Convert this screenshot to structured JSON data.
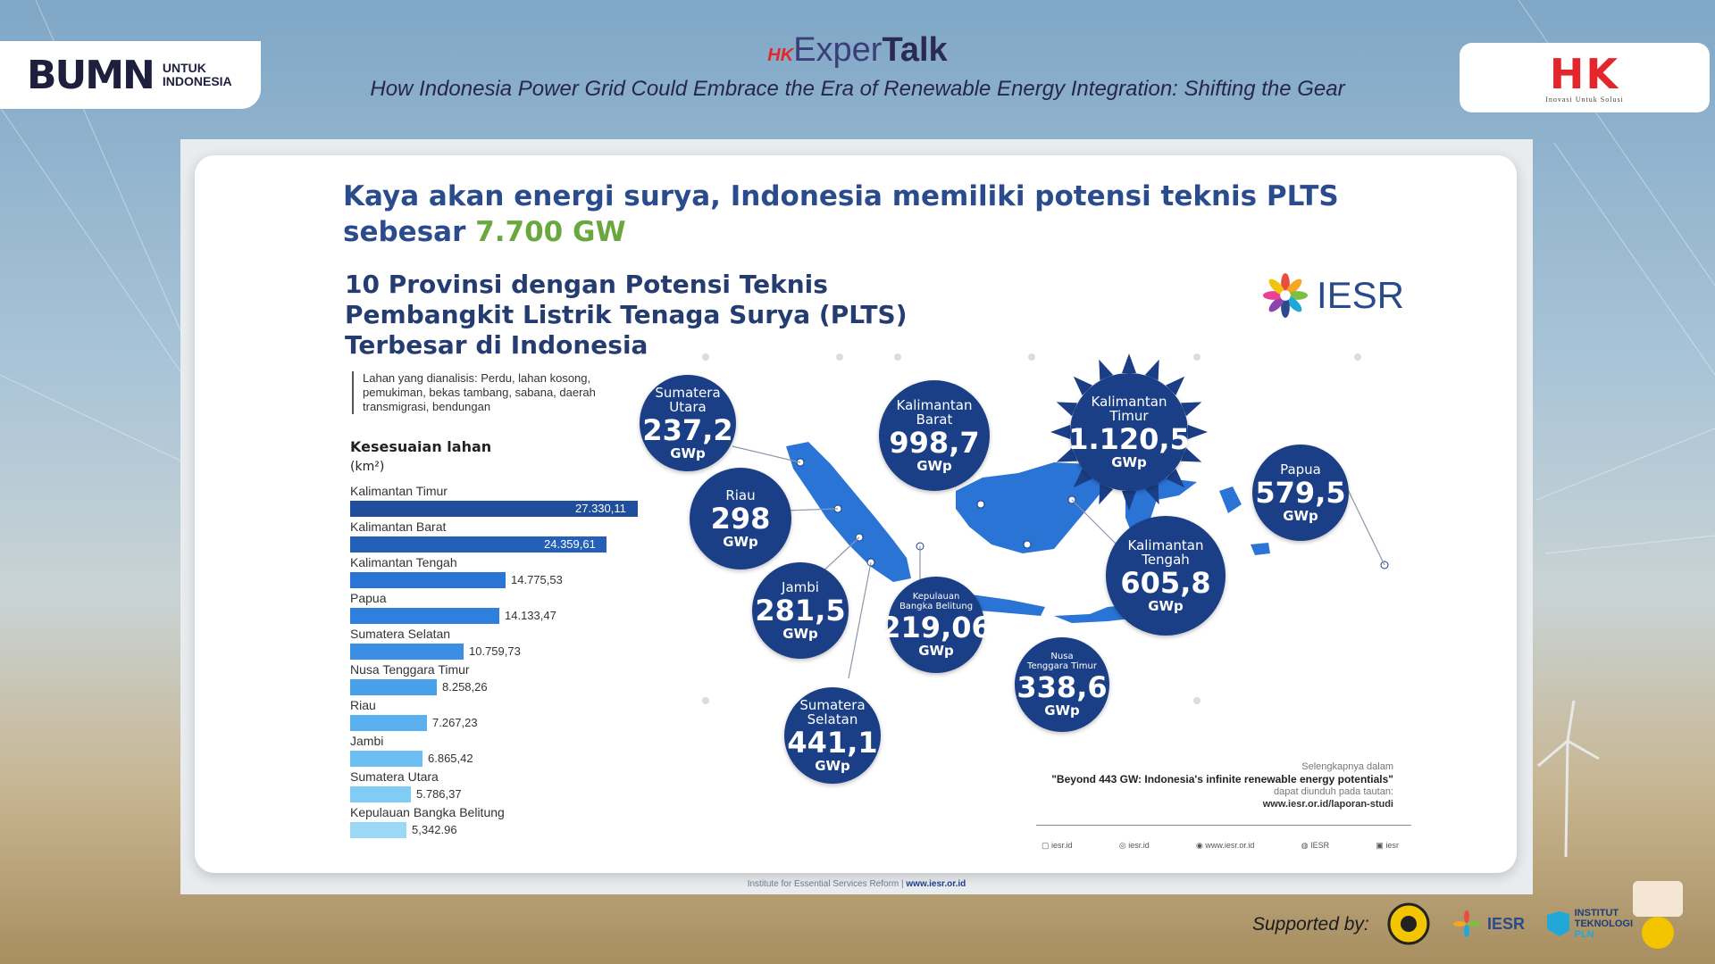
{
  "header": {
    "left_logo_mark": "BUMN",
    "left_logo_sub": "UNTUK INDONESIA",
    "center_brand_prefix": "HK",
    "center_brand_exper": "Exper",
    "center_brand_talk": "Talk",
    "subtitle": "How Indonesia Power Grid Could Embrace the Era of Renewable Energy Integration: Shifting the Gear",
    "right_logo_mark": "HK",
    "right_logo_tag": "Inovasi Untuk Solusi"
  },
  "slide": {
    "title_line1": "Kaya akan energi surya, Indonesia memiliki potensi teknis PLTS",
    "title_line2_prefix": "sebesar ",
    "title_highlight": "7.700 GW",
    "sub_line1": "10 Provinsi dengan Potensi Teknis",
    "sub_line2": "Pembangkit Listrik Tenaga Surya (PLTS)",
    "sub_line3": "Terbesar di Indonesia",
    "iesr_logo_text": "IESR",
    "note": "Lahan yang dianalisis: Perdu, lahan kosong, pemukiman, bekas tambang, sabana, daerah transmigrasi, bendungan",
    "bar_heading": "Kesesuaian lahan",
    "bar_unit": "(km²)",
    "bars": [
      {
        "label": "Kalimantan Timur",
        "value_text": "27.330,11",
        "value": 27330.11
      },
      {
        "label": "Kalimantan Barat",
        "value_text": "24.359,61",
        "value": 24359.61
      },
      {
        "label": "Kalimantan Tengah",
        "value_text": "14.775,53",
        "value": 14775.53
      },
      {
        "label": "Papua",
        "value_text": "14.133,47",
        "value": 14133.47
      },
      {
        "label": "Sumatera Selatan",
        "value_text": "10.759,73",
        "value": 10759.73
      },
      {
        "label": "Nusa Tenggara Timur",
        "value_text": "8.258,26",
        "value": 8258.26
      },
      {
        "label": "Riau",
        "value_text": "7.267,23",
        "value": 7267.23
      },
      {
        "label": "Jambi",
        "value_text": "6.865,42",
        "value": 6865.42
      },
      {
        "label": "Sumatera Utara",
        "value_text": "5.786,37",
        "value": 5786.37
      },
      {
        "label": "Kepulauan Bangka Belitung",
        "value_text": "5,342.96",
        "value": 5342.96
      }
    ],
    "bubbles": {
      "sumut": {
        "name1": "Sumatera",
        "name2": "Utara",
        "value": "237,2",
        "unit": "GWp"
      },
      "riau": {
        "name1": "Riau",
        "value": "298",
        "unit": "GWp"
      },
      "jambi": {
        "name1": "Jambi",
        "value": "281,5",
        "unit": "GWp"
      },
      "babel": {
        "name1": "Kepulauan",
        "name2": "Bangka Belitung",
        "value": "219,06",
        "unit": "GWp"
      },
      "sumsel": {
        "name1": "Sumatera",
        "name2": "Selatan",
        "value": "441,1",
        "unit": "GWp"
      },
      "kalbar": {
        "name1": "Kalimantan",
        "name2": "Barat",
        "value": "998,7",
        "unit": "GWp"
      },
      "kaltim": {
        "name1": "Kalimantan",
        "name2": "Timur",
        "value": "1.120,5",
        "unit": "GWp"
      },
      "kalteng": {
        "name1": "Kalimantan",
        "name2": "Tengah",
        "value": "605,8",
        "unit": "GWp"
      },
      "ntt": {
        "name1": "Nusa",
        "name2": "Tenggara Timur",
        "value": "338,6",
        "unit": "GWp"
      },
      "papua": {
        "name1": "Papua",
        "value": "579,5",
        "unit": "GWp"
      }
    },
    "ref_line1": "Selengkapnya dalam",
    "ref_line2": "\"Beyond 443 GW: Indonesia's infinite renewable energy potentials\"",
    "ref_line3": "dapat diunduh pada tautan:",
    "ref_line4": "www.iesr.or.id/laporan-studi",
    "socials": [
      "iesr.id",
      "iesr.id",
      "www.iesr.or.id",
      "IESR",
      "iesr"
    ],
    "footer_org": "Institute for Essential Services Reform",
    "footer_site": "www.iesr.or.id"
  },
  "bottom": {
    "supported_label": "Supported by:",
    "sponsor_iesr": "IESR",
    "sponsor_itpln_1": "INSTITUT",
    "sponsor_itpln_2": "TEKNOLOGI",
    "sponsor_itpln_3": "PLN"
  },
  "colors": {
    "brand_blue": "#1b3f86",
    "title_blue": "#2b4c8c",
    "highlight_green": "#6aa83f",
    "hk_red": "#e3262b"
  }
}
